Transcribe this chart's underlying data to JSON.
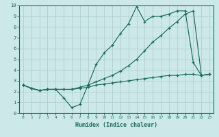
{
  "xlabel": "Humidex (Indice chaleur)",
  "xlim": [
    -0.5,
    23.5
  ],
  "ylim": [
    0,
    10
  ],
  "xticks": [
    0,
    1,
    2,
    3,
    4,
    5,
    6,
    7,
    8,
    9,
    10,
    11,
    12,
    13,
    14,
    15,
    16,
    17,
    18,
    19,
    20,
    21,
    22,
    23
  ],
  "yticks": [
    0,
    1,
    2,
    3,
    4,
    5,
    6,
    7,
    8,
    9,
    10
  ],
  "bg_color": "#cce8e8",
  "line_color": "#1a6b5a",
  "grid_color": "#aacccc",
  "line1_x": [
    0,
    1,
    2,
    3,
    4,
    5,
    6,
    7,
    8,
    9,
    10,
    11,
    12,
    13,
    14,
    15,
    16,
    17,
    18,
    19,
    20,
    21,
    22,
    23
  ],
  "line1_y": [
    2.6,
    2.3,
    2.1,
    2.2,
    2.2,
    1.4,
    0.5,
    0.8,
    2.6,
    4.5,
    5.6,
    6.3,
    7.4,
    8.3,
    9.9,
    8.5,
    9.0,
    9.0,
    9.2,
    9.5,
    9.5,
    4.7,
    3.5,
    3.6
  ],
  "line2_x": [
    0,
    1,
    2,
    3,
    4,
    5,
    6,
    7,
    8,
    9,
    10,
    11,
    12,
    13,
    14,
    15,
    16,
    17,
    18,
    19,
    20,
    21,
    22,
    23
  ],
  "line2_y": [
    2.6,
    2.3,
    2.1,
    2.2,
    2.2,
    2.2,
    2.2,
    2.4,
    2.6,
    2.9,
    3.2,
    3.5,
    3.9,
    4.4,
    5.0,
    5.8,
    6.6,
    7.2,
    7.9,
    8.5,
    9.2,
    9.5,
    3.5,
    3.6
  ],
  "line3_x": [
    0,
    1,
    2,
    3,
    4,
    5,
    6,
    7,
    8,
    9,
    10,
    11,
    12,
    13,
    14,
    15,
    16,
    17,
    18,
    19,
    20,
    21,
    22,
    23
  ],
  "line3_y": [
    2.6,
    2.3,
    2.1,
    2.2,
    2.2,
    2.2,
    2.2,
    2.3,
    2.4,
    2.6,
    2.7,
    2.8,
    2.9,
    3.0,
    3.1,
    3.2,
    3.3,
    3.4,
    3.5,
    3.5,
    3.6,
    3.6,
    3.5,
    3.6
  ]
}
